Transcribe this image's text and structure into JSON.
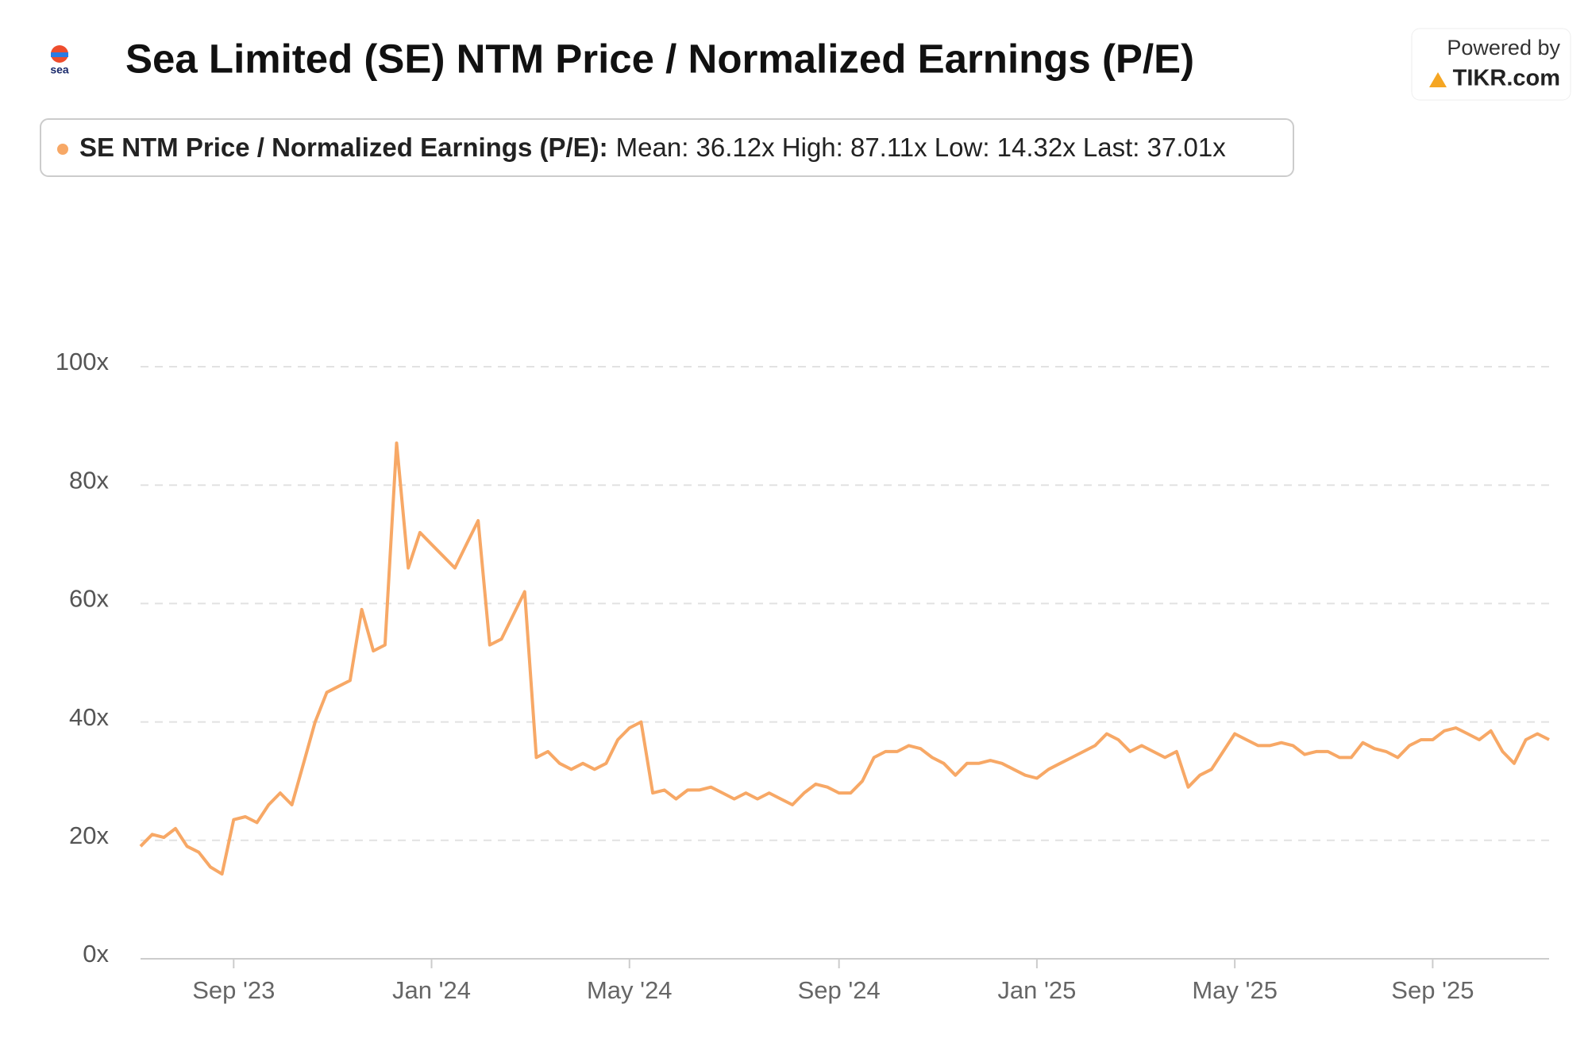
{
  "chart_data": {
    "type": "line",
    "title": "Sea Limited (SE) NTM Price / Normalized Earnings (P/E)",
    "brand": {
      "powered": "Powered by",
      "name": "TIKR.com",
      "logo": "sea"
    },
    "legend_label": "SE NTM Price / Normalized Earnings (P/E):",
    "legend_stats": "Mean: 36.12x High: 87.11x Low: 14.32x Last: 37.01x",
    "categories": [
      null,
      null,
      null,
      null,
      null,
      null,
      null,
      null,
      "Sep '23",
      null,
      null,
      null,
      null,
      null,
      null,
      null,
      null,
      null,
      null,
      null,
      null,
      null,
      null,
      null,
      null,
      "Jan '24",
      null,
      null,
      null,
      null,
      null,
      null,
      null,
      null,
      null,
      null,
      null,
      null,
      null,
      null,
      null,
      null,
      "May '24",
      null,
      null,
      null,
      null,
      null,
      null,
      null,
      null,
      null,
      null,
      null,
      null,
      null,
      null,
      null,
      null,
      null,
      "Sep '24",
      null,
      null,
      null,
      null,
      null,
      null,
      null,
      null,
      null,
      null,
      null,
      null,
      null,
      null,
      null,
      null,
      "Jan '25",
      null,
      null,
      null,
      null,
      null,
      null,
      null,
      null,
      null,
      null,
      null,
      null,
      null,
      null,
      null,
      null,
      "May '25",
      null,
      null,
      null,
      null,
      null,
      null,
      null,
      null,
      null,
      null,
      null,
      null,
      null,
      null,
      null,
      null,
      "Sep '25",
      null,
      null,
      null,
      null,
      null,
      null,
      null,
      null,
      null,
      null
    ],
    "series": [
      {
        "name": "SE NTM Price / Normalized Earnings (P/E)",
        "color": "#f7a866",
        "values": [
          19,
          21,
          20.5,
          22,
          19,
          18,
          15.5,
          14.32,
          23.5,
          24,
          23,
          26,
          28,
          26,
          33,
          40,
          45,
          46,
          47,
          59,
          52,
          53,
          87.11,
          66,
          72,
          70,
          68,
          66,
          70,
          74,
          53,
          54,
          58,
          62,
          34,
          35,
          33,
          32,
          33,
          32,
          33,
          37,
          39,
          40,
          28,
          28.5,
          27,
          28.5,
          28.5,
          29,
          28,
          27,
          28,
          27,
          28,
          27,
          26,
          28,
          29.5,
          29,
          28,
          28,
          30,
          34,
          35,
          35,
          36,
          35.5,
          34,
          33,
          31,
          33,
          33,
          33.5,
          33,
          32,
          31,
          30.5,
          32,
          33,
          34,
          35,
          36,
          38,
          37,
          35,
          36,
          35,
          34,
          35,
          29,
          31,
          32,
          35,
          38,
          37,
          36,
          36,
          36.5,
          36,
          34.5,
          35,
          35,
          34,
          34,
          36.5,
          35.5,
          35,
          34,
          36,
          37,
          37,
          38.5,
          39,
          38,
          37,
          38.5,
          35,
          33,
          37,
          38,
          37.01
        ]
      }
    ],
    "ylim": [
      0,
      100
    ],
    "yticks": [
      {
        "value": 0,
        "label": "0x"
      },
      {
        "value": 20,
        "label": "20x"
      },
      {
        "value": 40,
        "label": "40x"
      },
      {
        "value": 60,
        "label": "60x"
      },
      {
        "value": 80,
        "label": "80x"
      },
      {
        "value": 100,
        "label": "100x"
      }
    ],
    "grid": true
  }
}
